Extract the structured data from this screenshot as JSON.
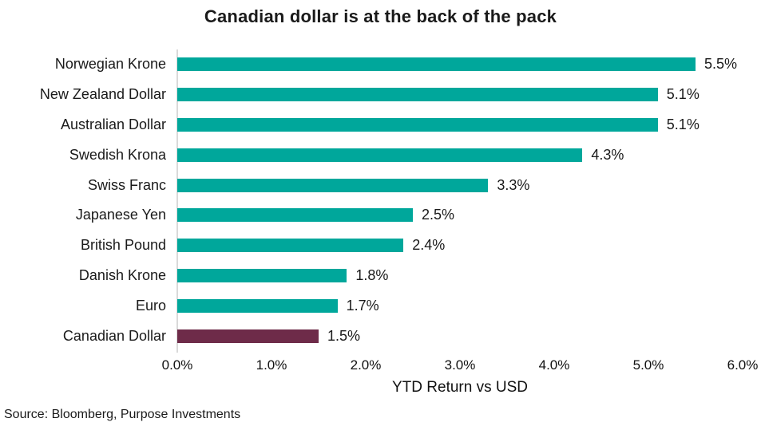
{
  "title": "Canadian dollar is at the back of the pack",
  "source": "Source: Bloomberg, Purpose Investments",
  "chart_data": {
    "type": "bar",
    "orientation": "horizontal",
    "title": "Canadian dollar is at the back of the pack",
    "categories": [
      "Norwegian Krone",
      "New Zealand Dollar",
      "Australian Dollar",
      "Swedish Krona",
      "Swiss Franc",
      "Japanese Yen",
      "British Pound",
      "Danish Krone",
      "Euro",
      "Canadian Dollar"
    ],
    "values": [
      5.5,
      5.1,
      5.1,
      4.3,
      3.3,
      2.5,
      2.4,
      1.8,
      1.7,
      1.5
    ],
    "value_labels": [
      "5.5%",
      "5.1%",
      "5.1%",
      "4.3%",
      "3.3%",
      "2.5%",
      "2.4%",
      "1.8%",
      "1.7%",
      "1.5%"
    ],
    "xlabel": "YTD Return vs USD",
    "ylabel": "",
    "xlim": [
      0,
      6
    ],
    "x_ticks": [
      "0.0%",
      "1.0%",
      "2.0%",
      "3.0%",
      "4.0%",
      "5.0%",
      "6.0%"
    ],
    "grid": false,
    "legend": false,
    "bar_color": "#00a79b",
    "highlight_color": "#6e2b49",
    "highlight_category": "Canadian Dollar",
    "axis_line_color": "#d9d9d9"
  }
}
